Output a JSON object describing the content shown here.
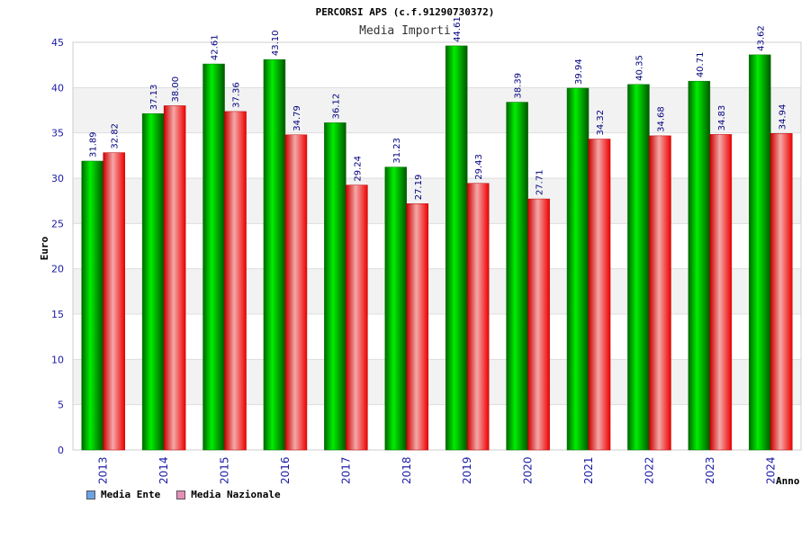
{
  "chart_data": {
    "type": "bar",
    "title": "PERCORSI APS (c.f.91290730372)",
    "subtitle": "Media Importi",
    "xlabel": "Anno",
    "ylabel": "Euro",
    "ylim": [
      0,
      45
    ],
    "yticks": [
      0,
      5,
      10,
      15,
      20,
      25,
      30,
      35,
      40,
      45
    ],
    "grid": true,
    "legend_position": "bottom-left",
    "categories": [
      "2013",
      "2014",
      "2015",
      "2016",
      "2017",
      "2018",
      "2019",
      "2020",
      "2021",
      "2022",
      "2023",
      "2024"
    ],
    "series": [
      {
        "name": "Media Ente",
        "legend_color": "#6aa3e8",
        "bar_color": "#00cc00",
        "values": [
          31.89,
          37.13,
          42.61,
          43.1,
          36.12,
          31.23,
          44.61,
          38.39,
          39.94,
          40.35,
          40.71,
          43.62
        ]
      },
      {
        "name": "Media Nazionale",
        "legend_color": "#e58fb8",
        "bar_color": "#ee2222",
        "values": [
          32.82,
          38.0,
          37.36,
          34.79,
          29.24,
          27.19,
          29.43,
          27.71,
          34.32,
          34.68,
          34.83,
          34.94
        ]
      }
    ]
  }
}
